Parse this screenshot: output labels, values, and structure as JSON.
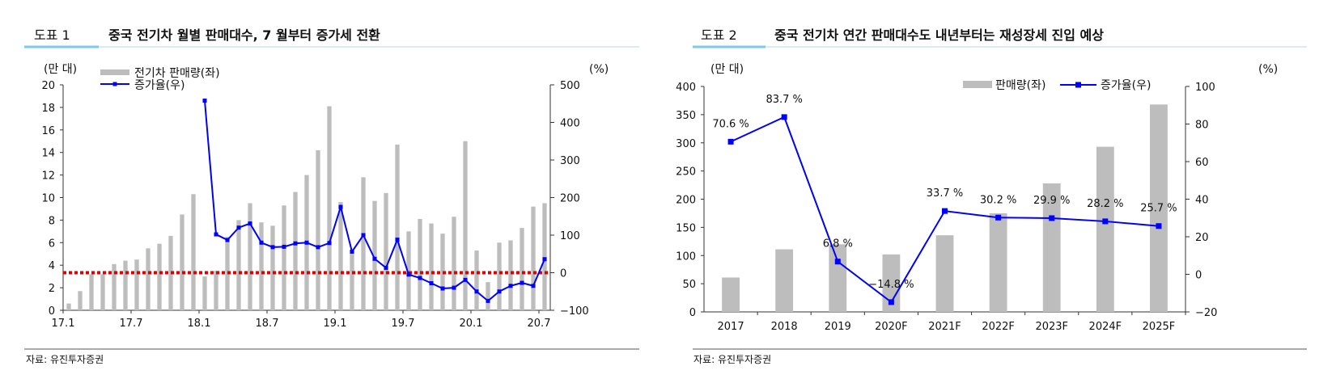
{
  "panels": [
    {
      "figure_label": "도표 1",
      "title": "중국 전기차 월별 판매대수, 7 월부터 증가세 전환",
      "source": "자료: 유진투자증권"
    },
    {
      "figure_label": "도표 2",
      "title": "중국 전기차 연간 판매대수도 내년부터는 재성장세 진입 예상",
      "source": "자료: 유진투자증권"
    }
  ],
  "colors": {
    "bar": "#bdbdbd",
    "line": "#0000ff",
    "reference": "#e00000",
    "title_rule": "#7ec8e8"
  },
  "chart_data": [
    {
      "type": "bar+line",
      "title": "중국 전기차 월별 판매대수, 7 월부터 증가세 전환",
      "left_unit": "(만 대)",
      "right_unit": "(%)",
      "left_ylim": [
        0,
        20
      ],
      "left_ticks": [
        "0",
        "2",
        "4",
        "6",
        "8",
        "10",
        "12",
        "14",
        "16",
        "18",
        "20"
      ],
      "right_ylim": [
        -100,
        500
      ],
      "right_ticks": [
        "-100",
        "0",
        "100",
        "200",
        "300",
        "400",
        "500"
      ],
      "x_tick_labels": [
        {
          "index": 0,
          "label": "17.1"
        },
        {
          "index": 6,
          "label": "17.7"
        },
        {
          "index": 12,
          "label": "18.1"
        },
        {
          "index": 18,
          "label": "18.7"
        },
        {
          "index": 24,
          "label": "19.1"
        },
        {
          "index": 30,
          "label": "19.7"
        },
        {
          "index": 36,
          "label": "20.1"
        },
        {
          "index": 42,
          "label": "20.7"
        }
      ],
      "legend": [
        "전기차 판매량(좌)",
        "증가율(우)"
      ],
      "series": [
        {
          "name": "전기차 판매량(좌)",
          "kind": "bar",
          "axis": "left",
          "values": [
            0.6,
            1.7,
            3.2,
            3.2,
            4.1,
            4.4,
            4.5,
            5.5,
            5.9,
            6.6,
            8.5,
            10.3,
            3.0,
            3.5,
            6.5,
            8.0,
            9.5,
            7.8,
            7.5,
            9.3,
            10.5,
            12.0,
            14.2,
            18.1,
            9.6,
            5.3,
            11.8,
            9.7,
            10.4,
            14.7,
            7.0,
            8.1,
            7.7,
            6.8,
            8.3,
            15.0,
            5.3,
            2.5,
            6.0,
            6.2,
            7.3,
            9.2,
            9.5
          ]
        },
        {
          "name": "증가율(우)",
          "kind": "line",
          "axis": "right",
          "start_index": 12,
          "values": [
            458,
            102,
            87,
            120,
            131,
            80,
            68,
            69,
            78,
            80,
            68,
            79,
            175,
            56,
            100,
            37,
            13,
            88,
            -5,
            -14,
            -28,
            -42,
            -40,
            -19,
            -50,
            -75,
            -50,
            -35,
            -27,
            -35,
            36
          ]
        }
      ],
      "reference_line": {
        "axis": "right",
        "value": 0,
        "style": "dotted"
      }
    },
    {
      "type": "bar+line",
      "title": "중국 전기차 연간 판매대수도 내년부터는 재성장세 진입 예상",
      "left_unit": "(만 대)",
      "right_unit": "(%)",
      "left_ylim": [
        0,
        400
      ],
      "left_ticks": [
        "0",
        "50",
        "100",
        "150",
        "200",
        "250",
        "300",
        "350",
        "400"
      ],
      "right_ylim": [
        -20,
        100
      ],
      "right_ticks": [
        "-20",
        "0",
        "20",
        "40",
        "60",
        "80",
        "100"
      ],
      "categories": [
        "2017",
        "2018",
        "2019",
        "2020F",
        "2021F",
        "2022F",
        "2023F",
        "2024F",
        "2025F"
      ],
      "legend": [
        "판매량(좌)",
        "증가율(우)"
      ],
      "series": [
        {
          "name": "판매량(좌)",
          "kind": "bar",
          "axis": "left",
          "values": [
            61,
            111,
            120,
            102,
            136,
            175,
            228,
            293,
            368
          ]
        },
        {
          "name": "증가율(우)",
          "kind": "line",
          "axis": "right",
          "values": [
            70.6,
            83.7,
            6.8,
            -14.8,
            33.7,
            30.2,
            29.9,
            28.2,
            25.7
          ],
          "data_labels": [
            "70.6 %",
            "83.7 %",
            "6.8 %",
            "−14.8 %",
            "33.7 %",
            "30.2 %",
            "29.9 %",
            "28.2 %",
            "25.7 %"
          ]
        }
      ]
    }
  ]
}
